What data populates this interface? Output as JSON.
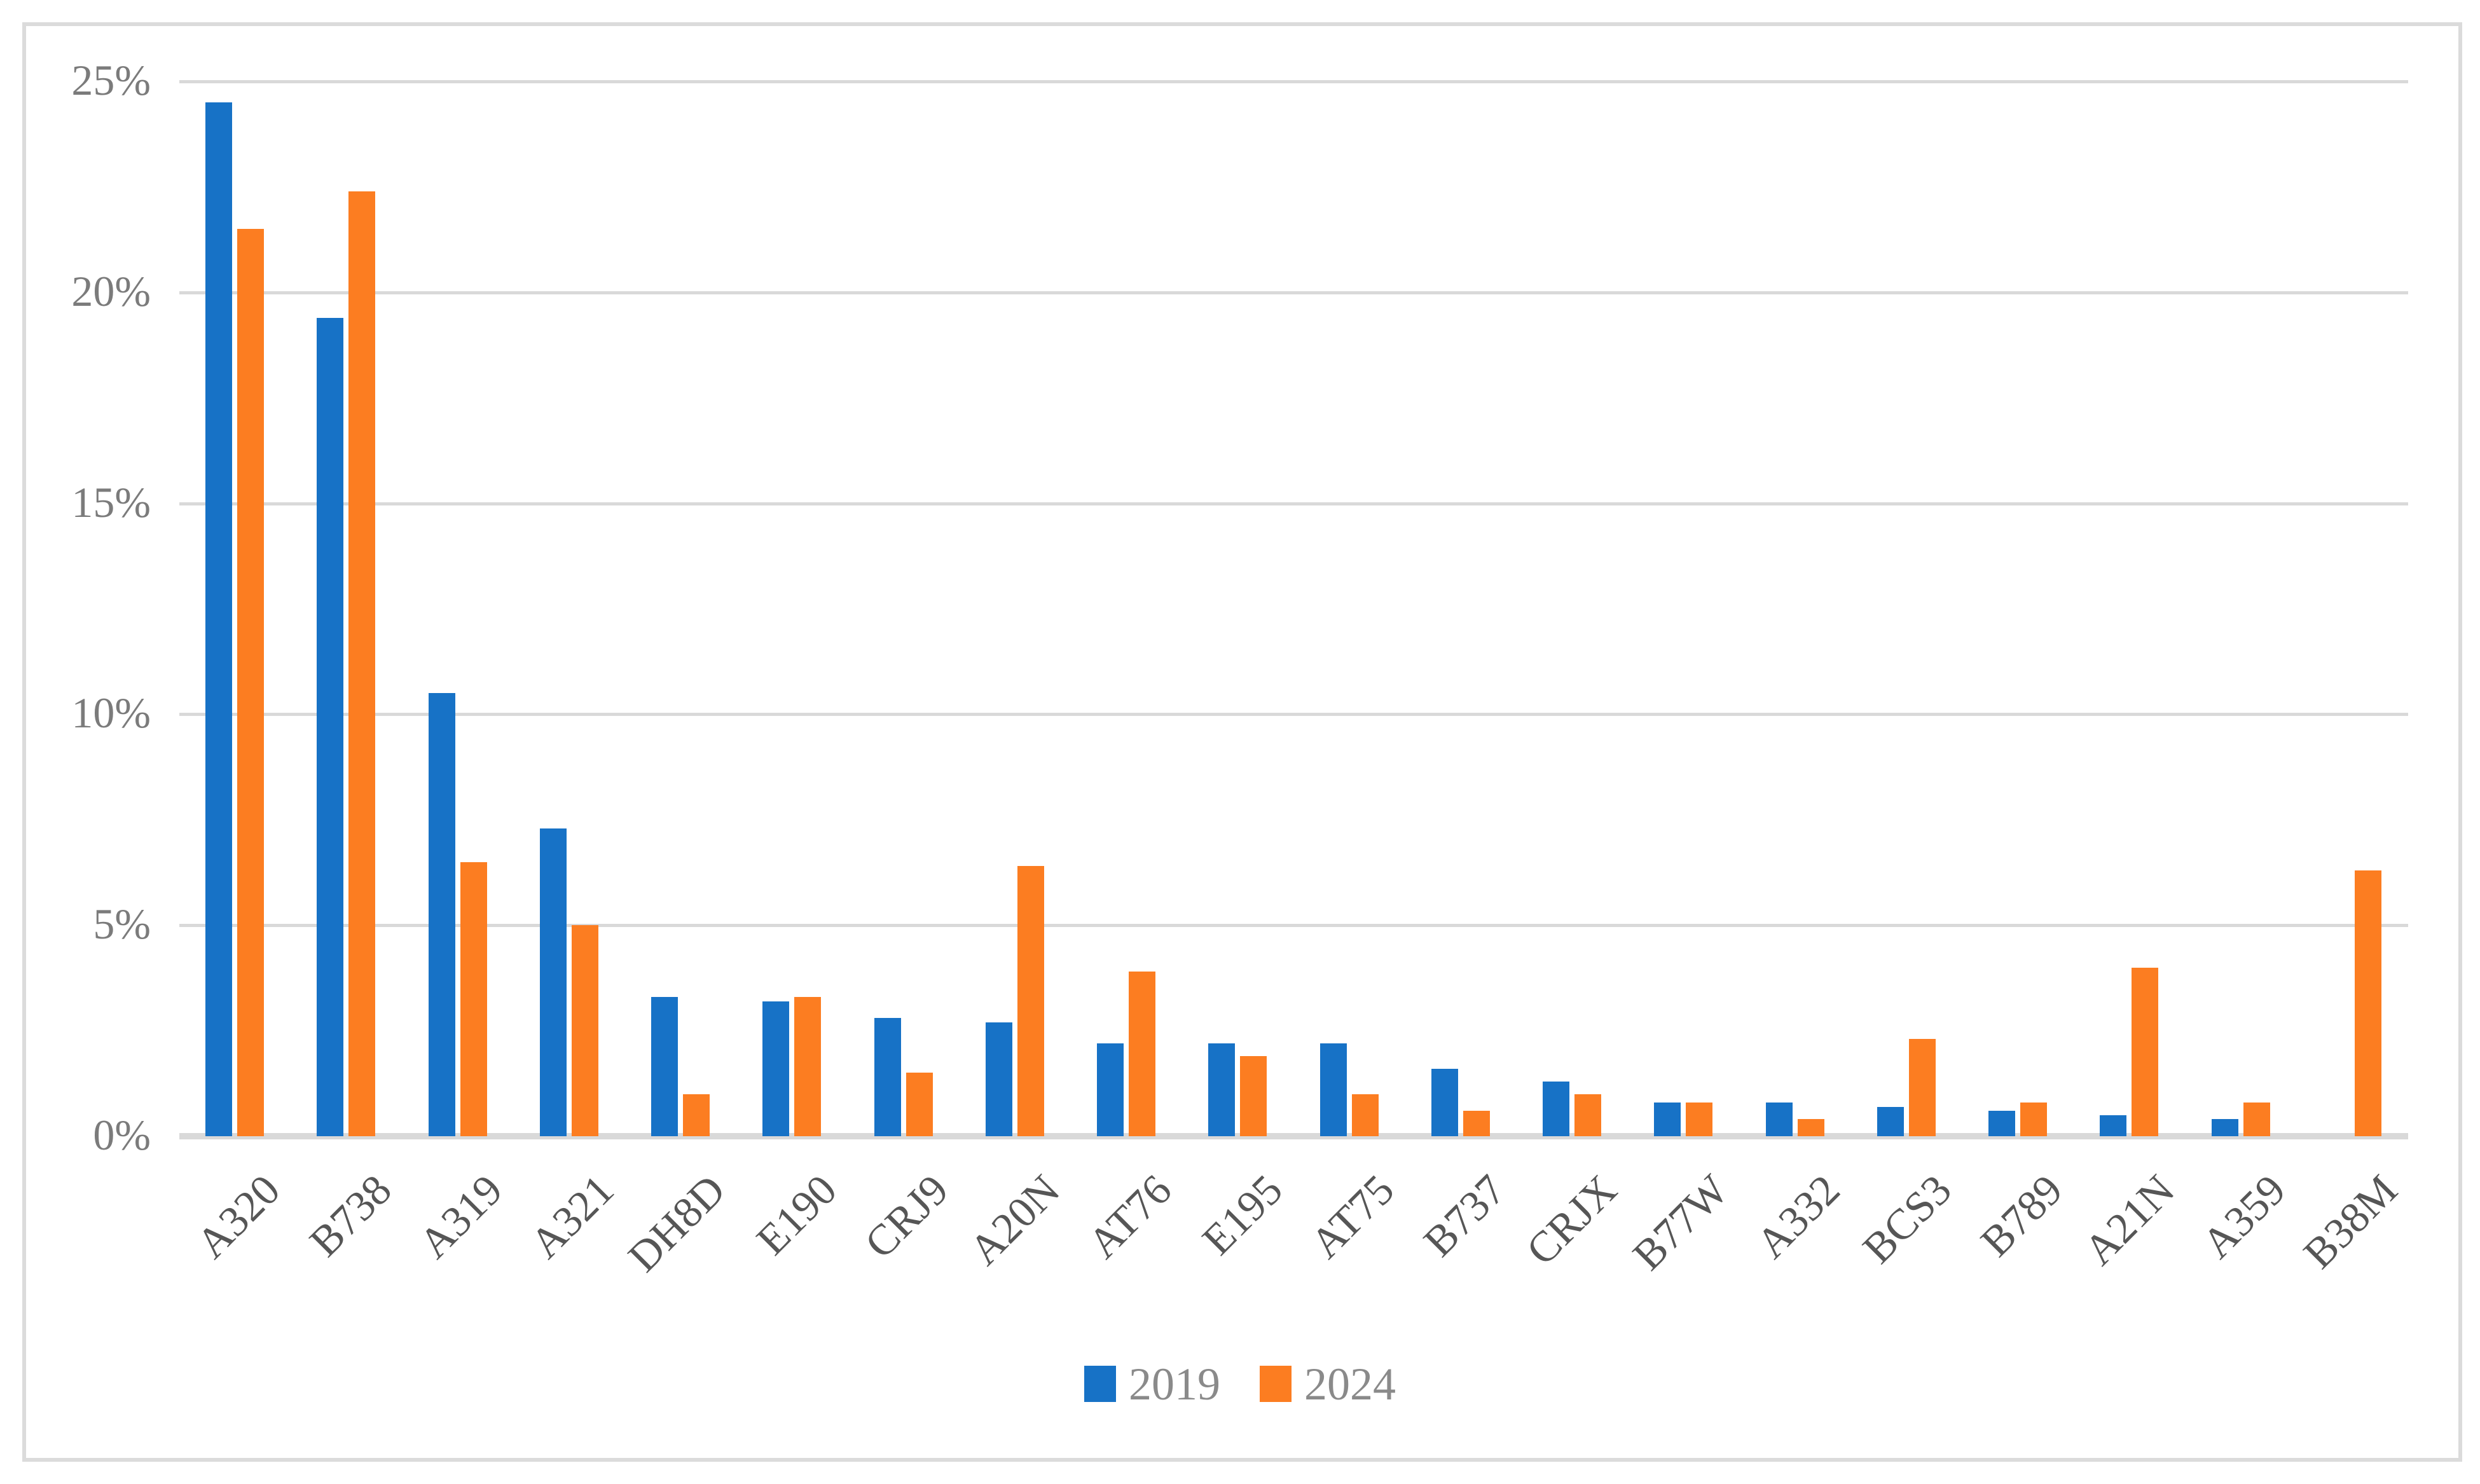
{
  "figure": {
    "background": "#ffffff",
    "frame_color": "#dbdbdb"
  },
  "chart_data": {
    "type": "bar",
    "title": "",
    "xlabel": "",
    "ylabel": "",
    "categories": [
      "A320",
      "B738",
      "A319",
      "A321",
      "DH8D",
      "E190",
      "CRJ9",
      "A20N",
      "AT76",
      "E195",
      "AT75",
      "B737",
      "CRJX",
      "B77W",
      "A332",
      "BCS3",
      "B789",
      "A21N",
      "A359",
      "B38M"
    ],
    "series": [
      {
        "name": "2019",
        "color": "#1772c6",
        "values": [
          24.5,
          19.4,
          10.5,
          7.3,
          3.3,
          3.2,
          2.8,
          2.7,
          2.2,
          2.2,
          2.2,
          1.6,
          1.3,
          0.8,
          0.8,
          0.7,
          0.6,
          0.5,
          0.4,
          0
        ]
      },
      {
        "name": "2024",
        "color": "#fc7d21",
        "values": [
          21.5,
          22.4,
          6.5,
          5.0,
          1.0,
          3.3,
          1.5,
          6.4,
          3.9,
          1.9,
          1.0,
          0.6,
          1.0,
          0.8,
          0.4,
          2.3,
          0.8,
          4.0,
          0.8,
          6.3
        ]
      }
    ],
    "ylim": [
      0,
      25
    ],
    "yticks": [
      {
        "value": 0,
        "label": "0%"
      },
      {
        "value": 5,
        "label": "5%"
      },
      {
        "value": 10,
        "label": "10%"
      },
      {
        "value": 15,
        "label": "15%"
      },
      {
        "value": 20,
        "label": "20%"
      },
      {
        "value": 25,
        "label": "25%"
      }
    ],
    "grid": true,
    "gridline_color": "#d9d9d9",
    "axis_line_color": "#d9d9d9",
    "y_tick_color": "#7b7b7b",
    "x_tick_color": "#565656",
    "legend_text_color": "#8a8a8a",
    "legend_position": "bottom",
    "x_label_rotation_deg": 45
  }
}
